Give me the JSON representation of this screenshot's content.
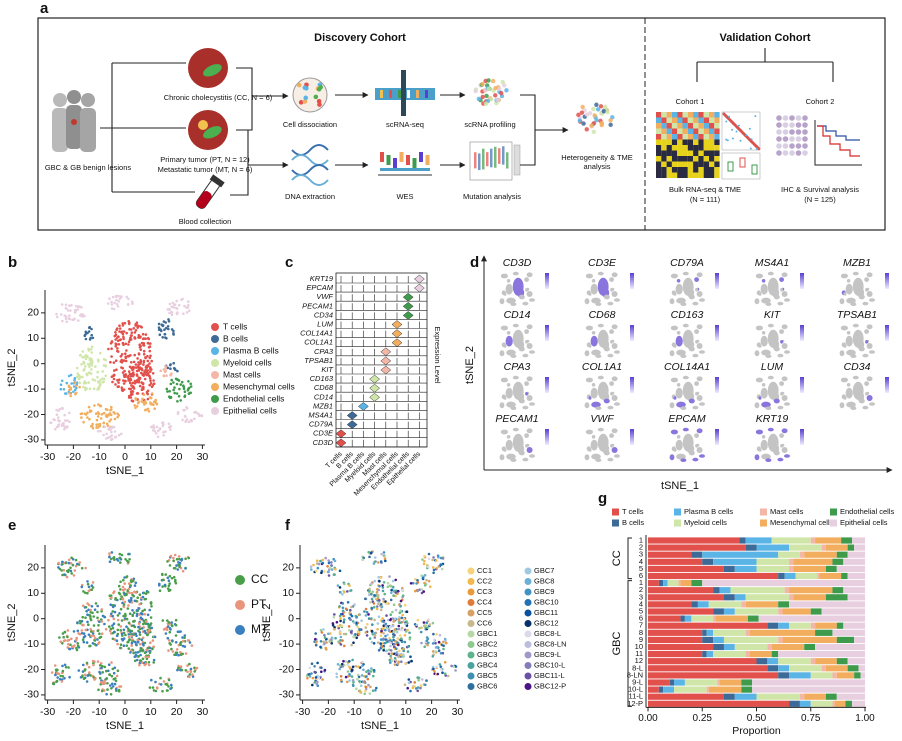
{
  "panel_labels": [
    "a",
    "b",
    "c",
    "d",
    "e",
    "f",
    "g"
  ],
  "workflow": {
    "discovery_title": "Discovery Cohort",
    "validation_title": "Validation Cohort",
    "source": "GBC & GB benign lesions",
    "cc": "Chronic cholecystitis (CC, N = 6)",
    "pt": "Primary tumor (PT, N = 12)",
    "mt": "Metastatic tumor (MT, N = 6)",
    "blood": "Blood collection",
    "cell_dissociation": "Cell dissociation",
    "scrna_seq": "scRNA-seq",
    "scrna_profiling": "scRNA profiling",
    "dna_extraction": "DNA extraction",
    "wes": "WES",
    "mutation": "Mutation analysis",
    "heterogeneity": [
      "Heterogeneity & TME",
      "analysis"
    ],
    "cohort1": {
      "name": "Cohort 1",
      "analysis": "Bulk RNA-seq & TME",
      "n": "(N = 111)"
    },
    "cohort2": {
      "name": "Cohort 2",
      "analysis": "IHC & Survival analysis",
      "n": "(N = 125)"
    }
  },
  "tsne_celltypes": {
    "xlabel": "tSNE_1",
    "ylabel": "tSNE_2",
    "xlim": [
      -31,
      31
    ],
    "ylim": [
      -32,
      29
    ],
    "xticks": [
      -30,
      -20,
      -10,
      0,
      10,
      20,
      30
    ],
    "yticks": [
      -30,
      -20,
      -10,
      0,
      10,
      20
    ],
    "legend": [
      {
        "name": "T cells",
        "color": "#e2504c"
      },
      {
        "name": "B cells",
        "color": "#3d6a96"
      },
      {
        "name": "Plasma B cells",
        "color": "#5ab4e5"
      },
      {
        "name": "Myeloid cells",
        "color": "#cfe6a8"
      },
      {
        "name": "Mast cells",
        "color": "#f4b6a6"
      },
      {
        "name": "Mesenchymal cells",
        "color": "#f2ae5e"
      },
      {
        "name": "Endothelial cells",
        "color": "#3e9b4c"
      },
      {
        "name": "Epithelial cells",
        "color": "#e8cfe0"
      }
    ]
  },
  "violin": {
    "genes": [
      "KRT19",
      "EPCAM",
      "VWF",
      "PECAM1",
      "CD34",
      "LUM",
      "COL14A1",
      "COL1A1",
      "CPA3",
      "TPSAB1",
      "KIT",
      "CD163",
      "CD68",
      "CD14",
      "MZB1",
      "MS4A1",
      "CD79A",
      "CD3E",
      "CD3D"
    ],
    "cell_types": [
      "T cells",
      "B cells",
      "Plasma B cells",
      "Myeloid cells",
      "Mast cells",
      "Mesenchymal cells",
      "Endothelial cells",
      "Epithelial cells"
    ],
    "scale_label": "Expression Level"
  },
  "feature_plots": {
    "genes": [
      "CD3D",
      "CD3E",
      "CD79A",
      "MS4A1",
      "MZB1",
      "CD14",
      "CD68",
      "CD163",
      "KIT",
      "TPSAB1",
      "CPA3",
      "COL1A1",
      "COL14A1",
      "LUM",
      "CD34",
      "PECAM1",
      "VWF",
      "EPCAM",
      "KRT19"
    ],
    "xlabel": "tSNE_1",
    "ylabel": "tSNE_2"
  },
  "tsne_tissue": {
    "xlabel": "tSNE_1",
    "ylabel": "tSNE_2",
    "xlim": [
      -31,
      31
    ],
    "ylim": [
      -32,
      29
    ],
    "xticks": [
      -30,
      -20,
      -10,
      0,
      10,
      20,
      30
    ],
    "yticks": [
      -30,
      -20,
      -10,
      0,
      10,
      20
    ],
    "legend": [
      {
        "name": "CC",
        "color": "#4a9e4a"
      },
      {
        "name": "PT",
        "color": "#e8957c"
      },
      {
        "name": "MT",
        "color": "#3a7fbf"
      }
    ]
  },
  "tsne_sample": {
    "xlabel": "tSNE_1",
    "ylabel": "tSNE_2",
    "xlim": [
      -31,
      31
    ],
    "ylim": [
      -32,
      29
    ],
    "xticks": [
      -30,
      -20,
      -10,
      0,
      10,
      20,
      30
    ],
    "yticks": [
      -30,
      -20,
      -10,
      0,
      10,
      20
    ],
    "legend": [
      {
        "name": "CC1",
        "color": "#f6d27a"
      },
      {
        "name": "CC2",
        "color": "#f2b84b"
      },
      {
        "name": "CC3",
        "color": "#e99a3a"
      },
      {
        "name": "CC4",
        "color": "#e07b39"
      },
      {
        "name": "CC5",
        "color": "#d9a066"
      },
      {
        "name": "CC6",
        "color": "#c8b88a"
      },
      {
        "name": "GBC1",
        "color": "#b7d9a8"
      },
      {
        "name": "GBC2",
        "color": "#8fc98f"
      },
      {
        "name": "GBC3",
        "color": "#5fb38a"
      },
      {
        "name": "GBC4",
        "color": "#4aa3a0"
      },
      {
        "name": "GBC5",
        "color": "#3f8fb0"
      },
      {
        "name": "GBC6",
        "color": "#2f6f9f"
      },
      {
        "name": "GBC7",
        "color": "#9ecae1"
      },
      {
        "name": "GBC8",
        "color": "#6baed6"
      },
      {
        "name": "GBC9",
        "color": "#4292c6"
      },
      {
        "name": "GBC10",
        "color": "#2171b5"
      },
      {
        "name": "GBC11",
        "color": "#08519c"
      },
      {
        "name": "GBC12",
        "color": "#08306b"
      },
      {
        "name": "GBC8-L",
        "color": "#dadaeb"
      },
      {
        "name": "GBC8-LN",
        "color": "#bcbddc"
      },
      {
        "name": "GBC9-L",
        "color": "#9e9ac8"
      },
      {
        "name": "GBC10-L",
        "color": "#807dba"
      },
      {
        "name": "GBC11-L",
        "color": "#6a51a3"
      },
      {
        "name": "GBC12-P",
        "color": "#4a1486"
      }
    ]
  },
  "chart_data": {
    "type": "bar",
    "orientation": "horizontal",
    "stacked": true,
    "xlabel": "Proportion",
    "categories": [
      "1",
      "2",
      "3",
      "4",
      "5",
      "6",
      "1",
      "2",
      "3",
      "4",
      "5",
      "6",
      "7",
      "8",
      "9",
      "10",
      "11",
      "12",
      "8-L",
      "8-LN",
      "9-L",
      "10-L",
      "11-L",
      "12-P"
    ],
    "groups": [
      "CC",
      "GBC"
    ],
    "xlim": [
      0,
      1
    ],
    "xticks": [
      {
        "value": 0,
        "label": "0.00"
      },
      {
        "value": 0.25,
        "label": "0.25"
      },
      {
        "value": 0.5,
        "label": "0.50"
      },
      {
        "value": 0.75,
        "label": "0.75"
      },
      {
        "value": 1,
        "label": "1.00"
      }
    ],
    "series": [
      {
        "name": "T cells",
        "color": "#e2504c",
        "values": [
          0.42,
          0.45,
          0.2,
          0.25,
          0.35,
          0.6,
          0.05,
          0.3,
          0.35,
          0.2,
          0.3,
          0.15,
          0.55,
          0.25,
          0.25,
          0.3,
          0.25,
          0.5,
          0.55,
          0.6,
          0.1,
          0.05,
          0.35,
          0.65
        ]
      },
      {
        "name": "B cells",
        "color": "#3d6a96",
        "values": [
          0.03,
          0.05,
          0.05,
          0.05,
          0.05,
          0.03,
          0.02,
          0.03,
          0.05,
          0.03,
          0.05,
          0.02,
          0.05,
          0.02,
          0.05,
          0.05,
          0.02,
          0.05,
          0.05,
          0.05,
          0.02,
          0.02,
          0.05,
          0.05
        ]
      },
      {
        "name": "Plasma B cells",
        "color": "#5ab4e5",
        "values": [
          0.12,
          0.15,
          0.35,
          0.2,
          0.1,
          0.05,
          0.02,
          0.05,
          0.05,
          0.05,
          0.05,
          0.03,
          0.05,
          0.03,
          0.05,
          0.05,
          0.03,
          0.05,
          0.05,
          0.1,
          0.05,
          0.05,
          0.1,
          0.05
        ]
      },
      {
        "name": "Myeloid cells",
        "color": "#cfe6a8",
        "values": [
          0.18,
          0.15,
          0.1,
          0.15,
          0.15,
          0.1,
          0.05,
          0.25,
          0.2,
          0.15,
          0.2,
          0.1,
          0.1,
          0.15,
          0.25,
          0.15,
          0.15,
          0.15,
          0.15,
          0.1,
          0.15,
          0.15,
          0.2,
          0.1
        ]
      },
      {
        "name": "Mast cells",
        "color": "#f4b6a6",
        "values": [
          0.02,
          0.02,
          0.02,
          0.02,
          0.02,
          0.01,
          0.01,
          0.02,
          0.02,
          0.02,
          0.02,
          0.01,
          0.02,
          0.02,
          0.02,
          0.02,
          0.02,
          0.02,
          0.02,
          0.02,
          0.01,
          0.01,
          0.02,
          0.01
        ]
      },
      {
        "name": "Mesenchymal cells",
        "color": "#f2ae5e",
        "values": [
          0.12,
          0.1,
          0.15,
          0.18,
          0.15,
          0.1,
          0.05,
          0.2,
          0.15,
          0.15,
          0.13,
          0.15,
          0.1,
          0.3,
          0.25,
          0.15,
          0.1,
          0.1,
          0.1,
          0.08,
          0.1,
          0.15,
          0.1,
          0.05
        ]
      },
      {
        "name": "Endothelial cells",
        "color": "#3e9b4c",
        "values": [
          0.05,
          0.03,
          0.05,
          0.05,
          0.05,
          0.03,
          0.05,
          0.05,
          0.1,
          0.05,
          0.05,
          0.05,
          0.03,
          0.08,
          0.08,
          0.05,
          0.03,
          0.05,
          0.05,
          0.03,
          0.05,
          0.05,
          0.05,
          0.03
        ]
      },
      {
        "name": "Epithelial cells",
        "color": "#e8cfe0",
        "values": [
          0.06,
          0.05,
          0.08,
          0.1,
          0.13,
          0.08,
          0.75,
          0.1,
          0.08,
          0.35,
          0.2,
          0.49,
          0.1,
          0.15,
          0.05,
          0.23,
          0.4,
          0.08,
          0.03,
          0.02,
          0.52,
          0.52,
          0.13,
          0.06
        ]
      }
    ]
  }
}
